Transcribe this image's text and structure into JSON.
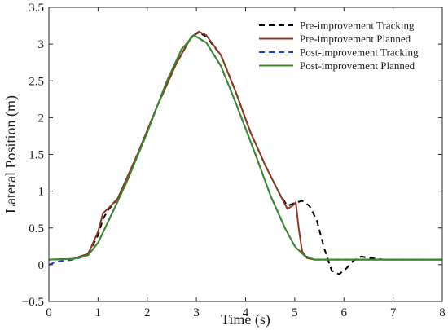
{
  "chart_data": {
    "type": "line",
    "xlabel": "Time (s)",
    "ylabel": "Lateral Position (m)",
    "xlim": [
      0,
      8
    ],
    "ylim": [
      -0.5,
      3.5
    ],
    "xticks": [
      "0",
      "1",
      "2",
      "3",
      "4",
      "5",
      "6",
      "7",
      "8"
    ],
    "yticks": [
      "−0.5",
      "0",
      "0.5",
      "1",
      "1.5",
      "2",
      "2.5",
      "3",
      "3.5"
    ],
    "grid": false,
    "legend_position": "top-right",
    "series": [
      {
        "name": "Pre-improvement Tracking",
        "color": "#000000",
        "dash": "dashed",
        "points": [
          [
            0,
            0.07
          ],
          [
            0.5,
            0.08
          ],
          [
            0.8,
            0.15
          ],
          [
            1.0,
            0.4
          ],
          [
            1.1,
            0.62
          ],
          [
            1.2,
            0.74
          ],
          [
            1.4,
            0.9
          ],
          [
            1.8,
            1.5
          ],
          [
            2.2,
            2.15
          ],
          [
            2.6,
            2.75
          ],
          [
            2.9,
            3.1
          ],
          [
            3.05,
            3.16
          ],
          [
            3.2,
            3.1
          ],
          [
            3.5,
            2.85
          ],
          [
            3.8,
            2.35
          ],
          [
            4.1,
            1.8
          ],
          [
            4.4,
            1.35
          ],
          [
            4.7,
            0.95
          ],
          [
            4.85,
            0.8
          ],
          [
            5.0,
            0.84
          ],
          [
            5.15,
            0.87
          ],
          [
            5.3,
            0.8
          ],
          [
            5.45,
            0.6
          ],
          [
            5.6,
            0.22
          ],
          [
            5.75,
            -0.08
          ],
          [
            5.9,
            -0.13
          ],
          [
            6.05,
            -0.05
          ],
          [
            6.2,
            0.06
          ],
          [
            6.35,
            0.11
          ],
          [
            6.55,
            0.09
          ],
          [
            6.8,
            0.07
          ],
          [
            8.0,
            0.07
          ]
        ]
      },
      {
        "name": "Pre-improvement Planned",
        "color": "#8B3A1E",
        "dash": "solid",
        "points": [
          [
            0,
            0.07
          ],
          [
            0.5,
            0.08
          ],
          [
            0.8,
            0.15
          ],
          [
            1.0,
            0.45
          ],
          [
            1.1,
            0.7
          ],
          [
            1.2,
            0.76
          ],
          [
            1.4,
            0.9
          ],
          [
            1.8,
            1.5
          ],
          [
            2.2,
            2.15
          ],
          [
            2.6,
            2.75
          ],
          [
            2.9,
            3.1
          ],
          [
            3.05,
            3.17
          ],
          [
            3.2,
            3.12
          ],
          [
            3.5,
            2.85
          ],
          [
            3.8,
            2.35
          ],
          [
            4.1,
            1.8
          ],
          [
            4.4,
            1.35
          ],
          [
            4.7,
            0.95
          ],
          [
            4.85,
            0.76
          ],
          [
            4.95,
            0.8
          ],
          [
            5.02,
            0.85
          ],
          [
            5.08,
            0.5
          ],
          [
            5.15,
            0.18
          ],
          [
            5.25,
            0.09
          ],
          [
            5.4,
            0.07
          ],
          [
            8.0,
            0.07
          ]
        ]
      },
      {
        "name": "Post-improvement Tracking",
        "color": "#1f3fd6",
        "dash": "dashed",
        "points": [
          [
            0,
            0.0
          ],
          [
            0.15,
            0.04
          ],
          [
            0.5,
            0.07
          ],
          [
            0.8,
            0.13
          ],
          [
            1.0,
            0.3
          ],
          [
            1.3,
            0.72
          ],
          [
            1.6,
            1.15
          ],
          [
            2.0,
            1.8
          ],
          [
            2.4,
            2.5
          ],
          [
            2.7,
            2.93
          ],
          [
            2.95,
            3.12
          ],
          [
            3.2,
            3.02
          ],
          [
            3.5,
            2.7
          ],
          [
            3.8,
            2.2
          ],
          [
            4.2,
            1.5
          ],
          [
            4.5,
            0.95
          ],
          [
            4.8,
            0.5
          ],
          [
            5.0,
            0.25
          ],
          [
            5.2,
            0.12
          ],
          [
            5.4,
            0.07
          ],
          [
            8.0,
            0.07
          ]
        ]
      },
      {
        "name": "Post-improvement Planned",
        "color": "#3a8a2a",
        "dash": "solid",
        "points": [
          [
            0,
            0.07
          ],
          [
            0.5,
            0.08
          ],
          [
            0.8,
            0.13
          ],
          [
            1.0,
            0.3
          ],
          [
            1.3,
            0.72
          ],
          [
            1.6,
            1.15
          ],
          [
            2.0,
            1.8
          ],
          [
            2.4,
            2.5
          ],
          [
            2.7,
            2.93
          ],
          [
            2.95,
            3.12
          ],
          [
            3.2,
            3.02
          ],
          [
            3.5,
            2.7
          ],
          [
            3.8,
            2.2
          ],
          [
            4.2,
            1.5
          ],
          [
            4.5,
            0.95
          ],
          [
            4.8,
            0.5
          ],
          [
            5.0,
            0.25
          ],
          [
            5.2,
            0.12
          ],
          [
            5.4,
            0.07
          ],
          [
            8.0,
            0.07
          ]
        ]
      }
    ]
  }
}
